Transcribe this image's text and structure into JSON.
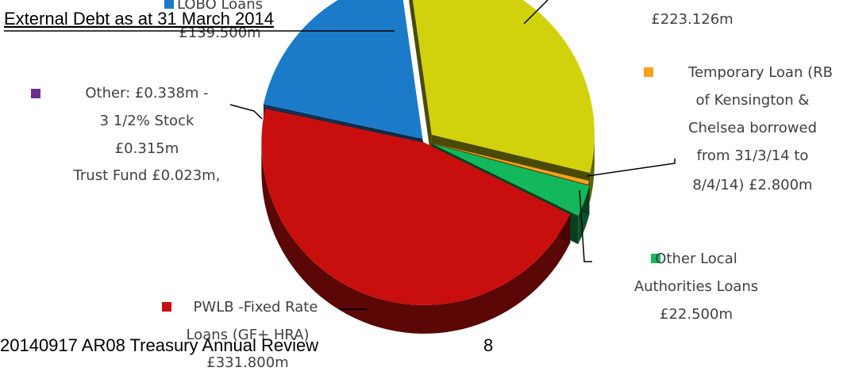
{
  "header": {
    "title": "External Debt as at 31 March 2014"
  },
  "chart_data": {
    "type": "pie",
    "slices": [
      {
        "label": [
          "£223.126m"
        ],
        "value": 223.126,
        "color": "#d2d20c"
      },
      {
        "label": [
          "Temporary Loan (RB",
          "of Kensington &",
          "Chelsea borrowed",
          "from 31/3/14 to",
          "8/4/14) £2.800m"
        ],
        "value": 2.8,
        "color": "#f7a21b"
      },
      {
        "label": [
          "Other Local",
          "Authorities Loans",
          "£22.500m"
        ],
        "value": 22.5,
        "color": "#14b85c"
      },
      {
        "label": [
          "PWLB -Fixed Rate",
          "Loans (GF+ HRA)",
          "£331.800m"
        ],
        "value": 331.8,
        "color": "#c80f0d"
      },
      {
        "label": [
          "Other: £0.338m -",
          "3 1/2% Stock",
          "£0.315m",
          "Trust Fund £0.023m,"
        ],
        "value": 0.338,
        "color": "#6b2f8c"
      },
      {
        "label": [
          "LOBO Loans",
          "£139.500m"
        ],
        "value": 139.5,
        "color": "#1b7bc9"
      }
    ]
  },
  "footer": {
    "document": "20140917 AR08 Treasury Annual Review",
    "page": "8"
  }
}
